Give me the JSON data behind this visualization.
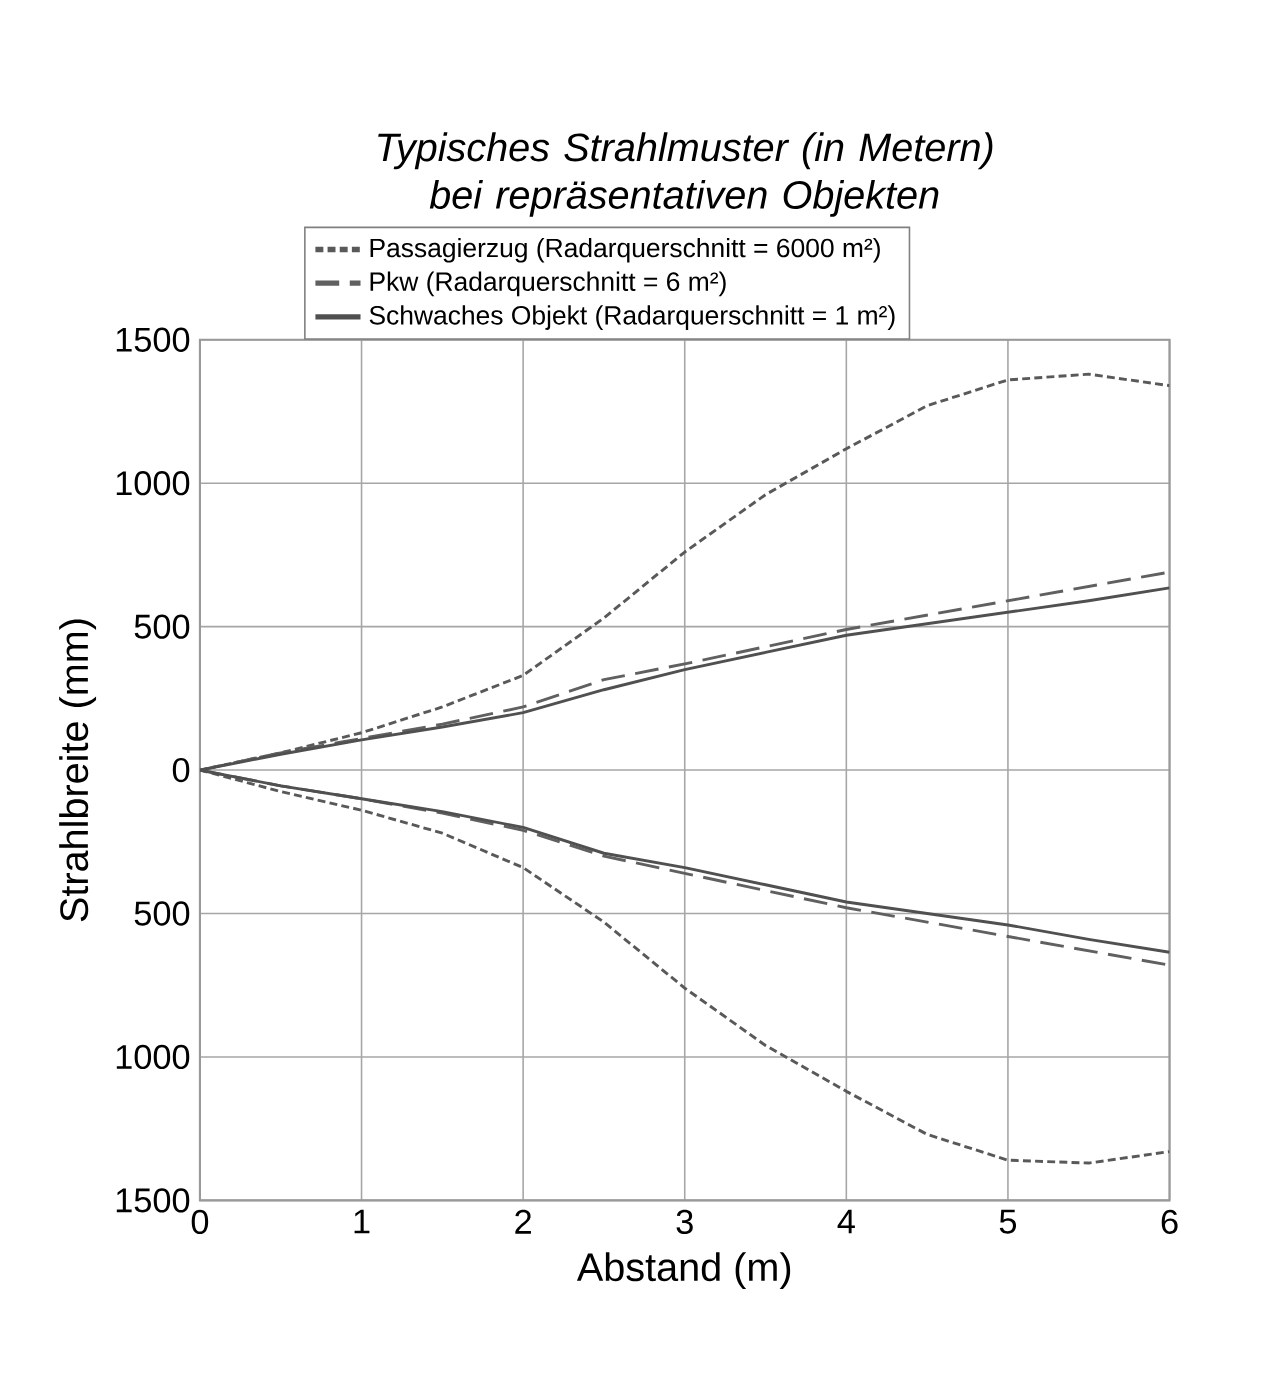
{
  "chart_data": {
    "type": "line",
    "title": "Typisches Strahlmuster (in Metern) bei repräsentativen Objekten",
    "xlabel": "Abstand (m)",
    "ylabel": "Strahlbreite (mm)",
    "x": [
      0,
      0.5,
      1,
      1.5,
      2,
      2.5,
      3,
      3.5,
      4,
      4.5,
      5,
      5.5,
      6
    ],
    "series": [
      {
        "name": "Passagierzug (Radarquerschnitt = 6000 m²)",
        "color": "#595959",
        "line_style": "dotted",
        "values": [
          0,
          60,
          130,
          220,
          330,
          530,
          760,
          960,
          1120,
          1270,
          1360,
          1380,
          1340
        ]
      },
      {
        "color": "#595959",
        "line_style": "dotted",
        "values": [
          0,
          -75,
          -140,
          -220,
          -340,
          -530,
          -760,
          -960,
          -1120,
          -1270,
          -1360,
          -1370,
          -1330
        ]
      },
      {
        "name": "Pkw (Radarquerschnitt = 6 m²)",
        "color": "#606060",
        "line_style": "dashed",
        "values": [
          0,
          60,
          110,
          160,
          220,
          315,
          370,
          430,
          490,
          540,
          590,
          640,
          690
        ]
      },
      {
        "color": "#606060",
        "line_style": "dashed",
        "values": [
          0,
          -55,
          -100,
          -150,
          -210,
          -300,
          -360,
          -420,
          -480,
          -530,
          -580,
          -630,
          -680
        ]
      },
      {
        "name": "Schwaches Objekt (Radarquerschnitt = 1 m²)",
        "color": "#505050",
        "line_style": "solid",
        "values": [
          0,
          55,
          105,
          150,
          200,
          280,
          350,
          410,
          470,
          510,
          550,
          590,
          635
        ]
      },
      {
        "color": "#505050",
        "line_style": "solid",
        "values": [
          0,
          -55,
          -100,
          -145,
          -200,
          -290,
          -340,
          -400,
          -460,
          -500,
          -540,
          -590,
          -635
        ]
      }
    ],
    "xlim": [
      0,
      6
    ],
    "xticks": [
      0,
      1,
      2,
      3,
      4,
      5,
      6
    ],
    "ylim": [
      -1500,
      1500
    ],
    "yticks": [
      {
        "value": -1500,
        "label": "1500"
      },
      {
        "value": -1000,
        "label": "1000"
      },
      {
        "value": -500,
        "label": "500"
      },
      0,
      500,
      1000,
      1500
    ],
    "grid": true,
    "legend": "top"
  }
}
